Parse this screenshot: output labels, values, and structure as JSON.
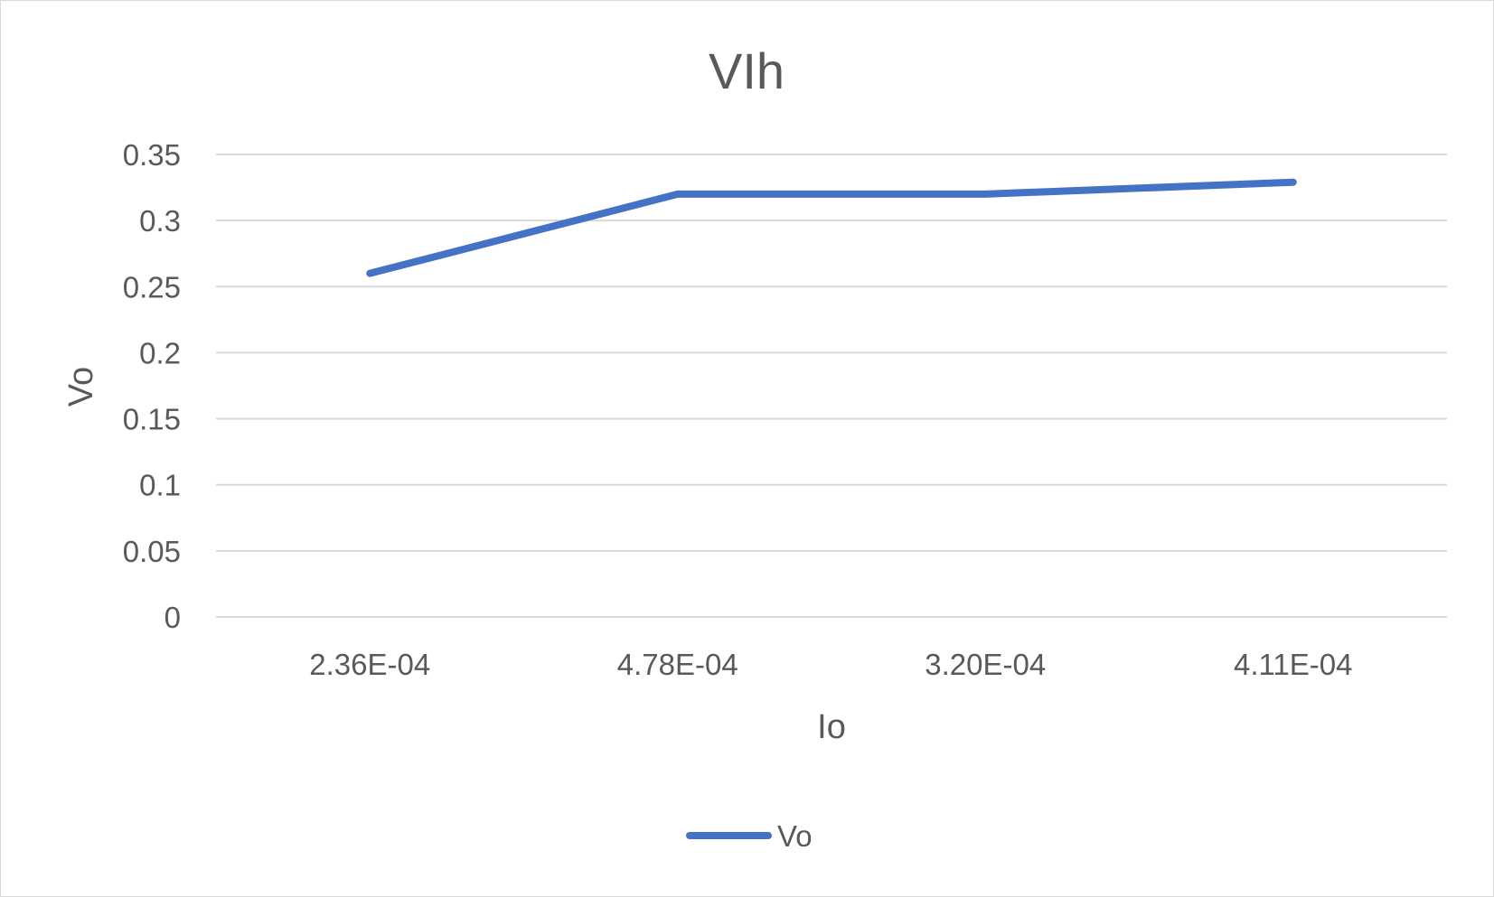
{
  "chart_data": {
    "type": "line",
    "title": "VIh",
    "xlabel": "Io",
    "ylabel": "Vo",
    "categories": [
      "2.36E-04",
      "4.78E-04",
      "3.20E-04",
      "4.11E-04"
    ],
    "series": [
      {
        "name": "Vo",
        "values": [
          0.26,
          0.32,
          0.32,
          0.329
        ],
        "color": "#4472c4"
      }
    ],
    "ylim": [
      0,
      0.35
    ],
    "yticks": [
      "0",
      "0.05",
      "0.1",
      "0.15",
      "0.2",
      "0.25",
      "0.3",
      "0.35"
    ],
    "grid": true,
    "legend_position": "bottom"
  }
}
